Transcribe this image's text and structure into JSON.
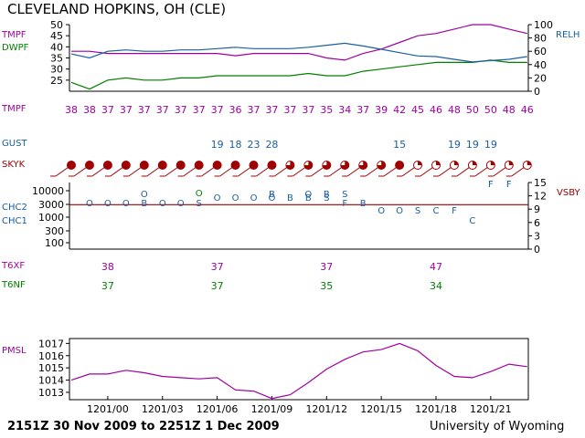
{
  "title": "CLEVELAND HOPKINS, OH (CLE)",
  "footer": {
    "period": "2151Z 30 Nov 2009 to 2251Z  1 Dec 2009",
    "source": "University of Wyoming"
  },
  "labels": {
    "tmpf": "TMPF",
    "dwpf": "DWPF",
    "relh": "RELH",
    "tmpf_row": "TMPF",
    "gust": "GUST",
    "skyk": "SKYK",
    "chc2": "CHC2",
    "chc1": "CHC1",
    "vsby": "VSBY",
    "t6xf": "T6XF",
    "t6nf": "T6NF",
    "pmsl": "PMSL"
  },
  "colors": {
    "temp": "#a000a0",
    "dewpoint": "#008000",
    "relh": "#1a5fa0",
    "sky": "#a00000",
    "vsby_line": "#a00000",
    "pressure": "#a000a0"
  },
  "chart_data": [
    {
      "type": "line",
      "panel": "temperature",
      "yticks": [
        25,
        30,
        35,
        40,
        45,
        50
      ],
      "ylim": [
        20,
        50
      ],
      "y2ticks": [
        0,
        20,
        40,
        60,
        80,
        100
      ],
      "y2lim": [
        0,
        100
      ],
      "series": [
        {
          "name": "TMPF",
          "axis": "left",
          "values": [
            38,
            38,
            37,
            37,
            37,
            37,
            37,
            37,
            37,
            36,
            37,
            37,
            37,
            37,
            35,
            34,
            37,
            39,
            42,
            45,
            46,
            48,
            50,
            50,
            48,
            46
          ]
        },
        {
          "name": "DWPF",
          "axis": "left",
          "values": [
            24,
            21,
            25,
            26,
            25,
            25,
            26,
            26,
            27,
            27,
            27,
            27,
            27,
            28,
            27,
            27,
            29,
            30,
            31,
            32,
            33,
            33,
            33,
            34,
            33,
            33
          ]
        },
        {
          "name": "RELH",
          "axis": "right",
          "values": [
            56,
            50,
            60,
            62,
            60,
            60,
            62,
            62,
            64,
            66,
            64,
            64,
            64,
            66,
            69,
            72,
            68,
            63,
            58,
            53,
            52,
            48,
            44,
            46,
            48,
            52
          ]
        }
      ]
    },
    {
      "type": "table",
      "panel": "TMPF",
      "values": [
        38,
        38,
        37,
        37,
        37,
        37,
        37,
        37,
        37,
        36,
        37,
        37,
        37,
        37,
        35,
        34,
        37,
        39,
        42,
        45,
        46,
        48,
        50,
        50,
        48,
        46
      ]
    },
    {
      "type": "table",
      "panel": "GUST",
      "entries": [
        {
          "index": 8,
          "value": "19"
        },
        {
          "index": 9,
          "value": "18"
        },
        {
          "index": 10,
          "value": "23"
        },
        {
          "index": 11,
          "value": "28"
        },
        {
          "index": 18,
          "value": "15"
        },
        {
          "index": 21,
          "value": "19"
        },
        {
          "index": 22,
          "value": "19"
        },
        {
          "index": 23,
          "value": "19"
        }
      ]
    },
    {
      "type": "scatter",
      "panel": "SKYK",
      "cover": [
        "full",
        "full",
        "full",
        "full",
        "full",
        "full",
        "full",
        "full",
        "full",
        "full",
        "full",
        "full",
        "broken",
        "broken",
        "broken",
        "broken",
        "broken",
        "broken",
        "full",
        "scattered",
        "scattered",
        "scattered",
        "scattered",
        "scattered",
        "scattered",
        "scattered"
      ]
    },
    {
      "type": "scatter",
      "panel": "clouds",
      "yticks": [
        "10000",
        "3000",
        "1000",
        "300",
        "100"
      ],
      "y2ticks": [
        0,
        3,
        6,
        9,
        12,
        15
      ],
      "y2lim": [
        0,
        15
      ],
      "visibility": 10,
      "points": [
        {
          "index": 1,
          "label": "O",
          "level": "low"
        },
        {
          "index": 2,
          "label": "O",
          "level": "low"
        },
        {
          "index": 3,
          "label": "O",
          "level": "low"
        },
        {
          "index": 4,
          "label": "O",
          "level": "top"
        },
        {
          "index": 4,
          "label": "B",
          "level": "low"
        },
        {
          "index": 5,
          "label": "O",
          "level": "low"
        },
        {
          "index": 6,
          "label": "O",
          "level": "low"
        },
        {
          "index": 7,
          "label": "O",
          "level": "up"
        },
        {
          "index": 7,
          "label": "S",
          "level": "low"
        },
        {
          "index": 8,
          "label": "O",
          "level": "mid"
        },
        {
          "index": 9,
          "label": "O",
          "level": "mid"
        },
        {
          "index": 10,
          "label": "O",
          "level": "mid"
        },
        {
          "index": 11,
          "label": "B",
          "level": "top"
        },
        {
          "index": 11,
          "label": "O",
          "level": "mid"
        },
        {
          "index": 12,
          "label": "B",
          "level": "mid"
        },
        {
          "index": 13,
          "label": "O",
          "level": "top"
        },
        {
          "index": 13,
          "label": "B",
          "level": "mid"
        },
        {
          "index": 14,
          "label": "B",
          "level": "top"
        },
        {
          "index": 14,
          "label": "S",
          "level": "mid"
        },
        {
          "index": 15,
          "label": "S",
          "level": "top"
        },
        {
          "index": 15,
          "label": "F",
          "level": "low"
        },
        {
          "index": 16,
          "label": "B",
          "level": "low"
        },
        {
          "index": 17,
          "label": "O",
          "level": "low2"
        },
        {
          "index": 18,
          "label": "O",
          "level": "low2"
        },
        {
          "index": 19,
          "label": "S",
          "level": "low2"
        },
        {
          "index": 20,
          "label": "C",
          "level": "low2"
        },
        {
          "index": 21,
          "label": "F",
          "level": "low2"
        },
        {
          "index": 22,
          "label": "C",
          "level": "bottom"
        },
        {
          "index": 23,
          "label": "F",
          "level": "vtop"
        },
        {
          "index": 24,
          "label": "F",
          "level": "vtop"
        }
      ]
    },
    {
      "type": "table",
      "panel": "T6XF",
      "entries": [
        {
          "index": 2,
          "value": "38"
        },
        {
          "index": 8,
          "value": "37"
        },
        {
          "index": 14,
          "value": "37"
        },
        {
          "index": 20,
          "value": "47"
        }
      ]
    },
    {
      "type": "table",
      "panel": "T6NF",
      "entries": [
        {
          "index": 2,
          "value": "37"
        },
        {
          "index": 8,
          "value": "37"
        },
        {
          "index": 14,
          "value": "35"
        },
        {
          "index": 20,
          "value": "34"
        }
      ]
    },
    {
      "type": "line",
      "panel": "pressure",
      "yticks": [
        1013,
        1014,
        1015,
        1016,
        1017
      ],
      "ylim": [
        1012.4,
        1017.4
      ],
      "xticks": [
        "1201/00",
        "1201/03",
        "1201/06",
        "1201/09",
        "1201/12",
        "1201/15",
        "1201/18",
        "1201/21"
      ],
      "series": [
        {
          "name": "PMSL",
          "values": [
            1014.0,
            1014.5,
            1014.5,
            1014.8,
            1014.6,
            1014.3,
            1014.2,
            1014.1,
            1014.2,
            1013.2,
            1013.1,
            1012.5,
            1012.8,
            1013.8,
            1014.9,
            1015.7,
            1016.3,
            1016.5,
            1017.0,
            1016.4,
            1015.2,
            1014.3,
            1014.2,
            1014.7,
            1015.3,
            1015.1
          ]
        }
      ]
    }
  ]
}
